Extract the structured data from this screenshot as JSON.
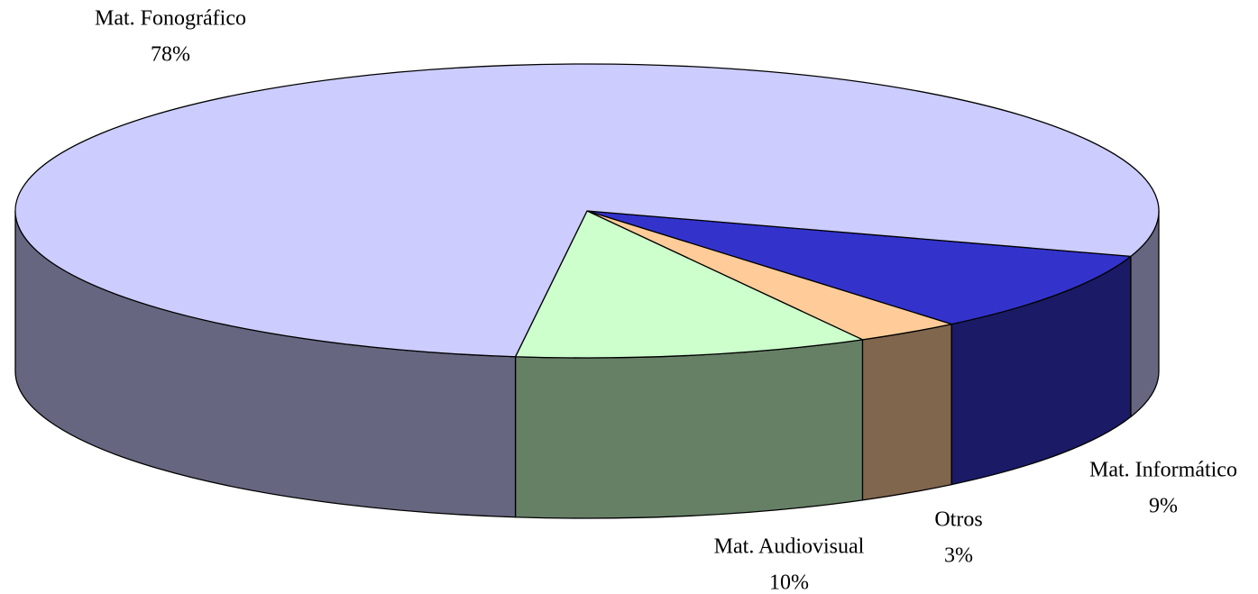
{
  "chart_data": {
    "type": "pie3d",
    "categories": [
      "Mat. Informático",
      "Otros",
      "Mat. Audiovisual",
      "Mat. Fonográfico"
    ],
    "values": [
      9,
      3,
      10,
      78
    ],
    "value_labels": [
      "9%",
      "3%",
      "10%",
      "78%"
    ],
    "colors": [
      "#3333cc",
      "#ffcc99",
      "#ccffcc",
      "#ccccff"
    ]
  }
}
